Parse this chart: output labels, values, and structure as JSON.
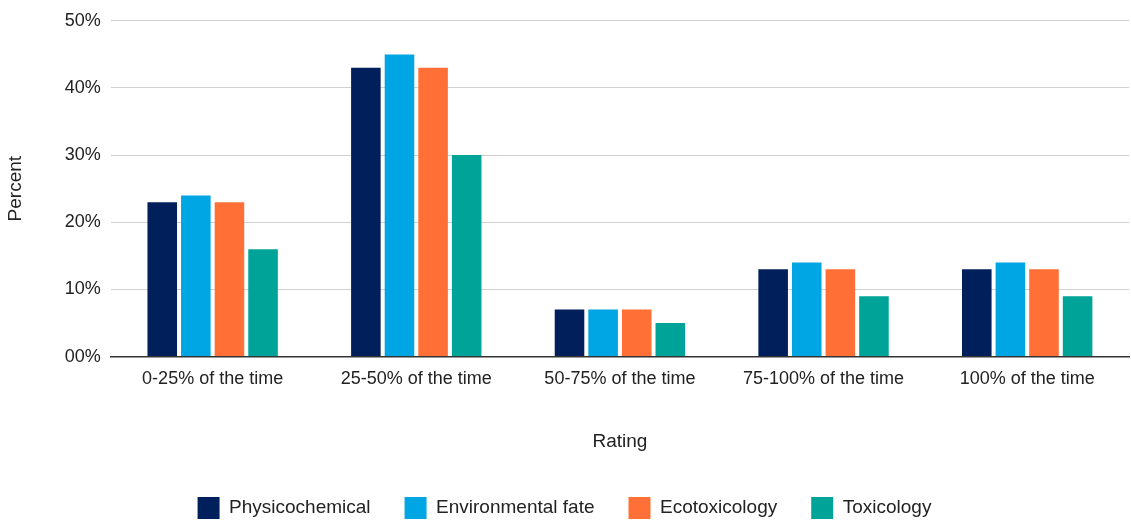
{
  "chart_data": {
    "type": "bar",
    "xlabel": "Rating",
    "ylabel": "Percent",
    "categories": [
      "0-25% of the time",
      "25-50% of the time",
      "50-75% of the time",
      "75-100% of the time",
      "100% of the time"
    ],
    "series": [
      {
        "name": "Physicochemical",
        "color": "#001f5b",
        "values": [
          23,
          43,
          7,
          13,
          13
        ]
      },
      {
        "name": "Environmental fate",
        "color": "#00a5e3",
        "values": [
          24,
          45,
          7,
          14,
          14
        ]
      },
      {
        "name": "Ecotoxicology",
        "color": "#ff6f36",
        "values": [
          23,
          43,
          7,
          13,
          13
        ]
      },
      {
        "name": "Toxicology",
        "color": "#00a398",
        "values": [
          16,
          30,
          5,
          9,
          9
        ]
      }
    ],
    "ylim": [
      0,
      50
    ],
    "yticks": [
      {
        "value": 0,
        "label": "00%"
      },
      {
        "value": 10,
        "label": "10%"
      },
      {
        "value": 20,
        "label": "20%"
      },
      {
        "value": 30,
        "label": "30%"
      },
      {
        "value": 40,
        "label": "40%"
      },
      {
        "value": 50,
        "label": "50%"
      }
    ],
    "grid": "y",
    "legend": "bottom"
  }
}
